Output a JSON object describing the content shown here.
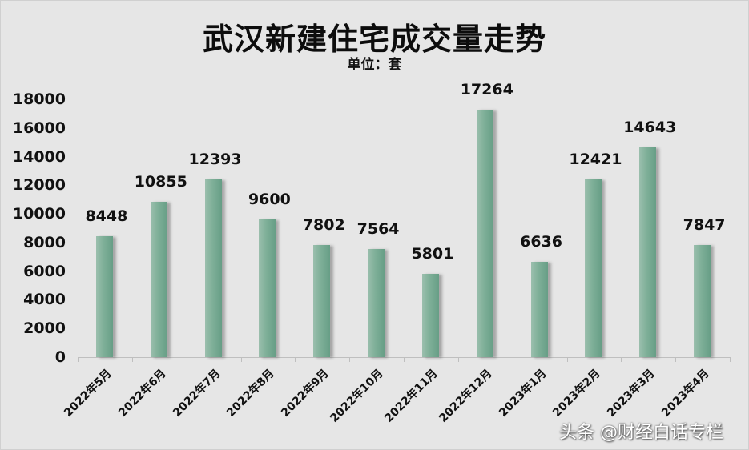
{
  "chart_data": {
    "type": "bar",
    "title": "武汉新建住宅成交量走势",
    "subtitle": "单位：套",
    "xlabel": "",
    "ylabel": "",
    "ylim": [
      0,
      18000
    ],
    "yticks": [
      0,
      2000,
      4000,
      6000,
      8000,
      10000,
      12000,
      14000,
      16000,
      18000
    ],
    "grid": false,
    "legend": null,
    "categories": [
      "2022年5月",
      "2022年6月",
      "2022年7月",
      "2022年8月",
      "2022年9月",
      "2022年10月",
      "2022年11月",
      "2022年12月",
      "2023年1月",
      "2023年2月",
      "2023年3月",
      "2023年4月"
    ],
    "values": [
      8448,
      10855,
      12393,
      9600,
      7802,
      7564,
      5801,
      17264,
      6636,
      12421,
      14643,
      7847
    ],
    "bar_color": "#7eaf98",
    "data_labels": true
  },
  "watermark": "头条 @财经白话专栏"
}
